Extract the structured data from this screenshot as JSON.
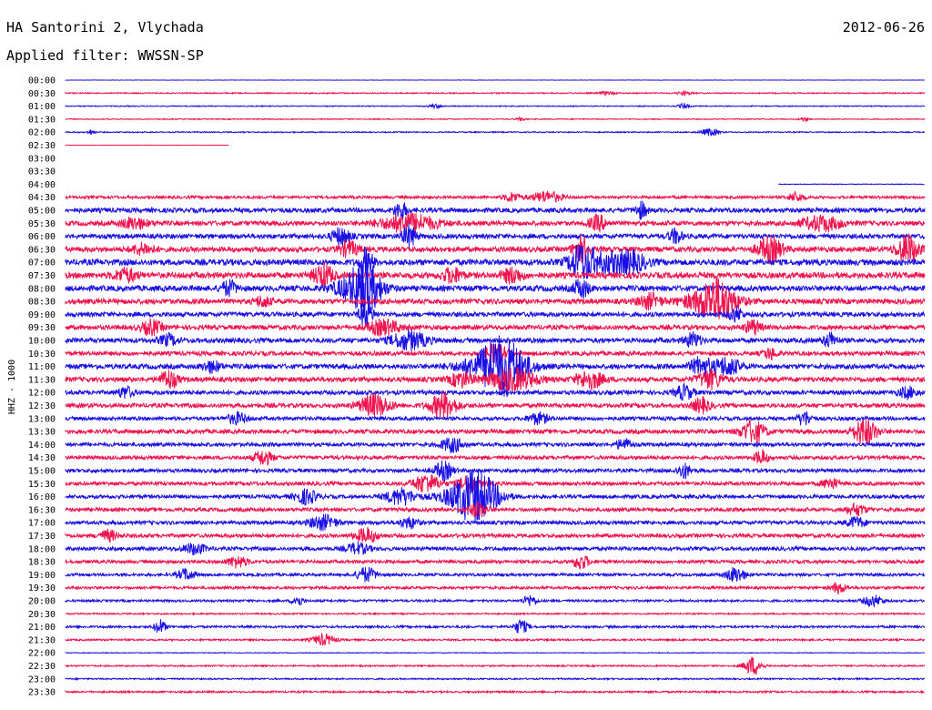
{
  "header": {
    "station": "HA Santorini 2, Vlychada",
    "date": "2012-06-26",
    "filter": "Applied filter: WWSSN-SP"
  },
  "chart_data": {
    "type": "line",
    "title": "HA Santorini 2, Vlychada",
    "ylabel": "HHZ - 1000",
    "xlabel": "",
    "rows": [
      "00:00",
      "00:30",
      "01:00",
      "01:30",
      "02:00",
      "02:30",
      "03:00",
      "03:30",
      "04:00",
      "04:30",
      "05:00",
      "05:30",
      "06:00",
      "06:30",
      "07:00",
      "07:30",
      "08:00",
      "08:30",
      "09:00",
      "09:30",
      "10:00",
      "10:30",
      "11:00",
      "11:30",
      "12:00",
      "12:30",
      "13:00",
      "13:30",
      "14:00",
      "14:30",
      "15:00",
      "15:30",
      "16:00",
      "16:30",
      "17:00",
      "17:30",
      "18:00",
      "18:30",
      "19:00",
      "19:30",
      "20:00",
      "20:30",
      "21:00",
      "21:30",
      "22:00",
      "22:30",
      "23:00",
      "23:30"
    ],
    "row_coverage": [
      [
        0,
        1
      ],
      [
        0,
        1
      ],
      [
        0,
        1
      ],
      [
        0,
        1
      ],
      [
        0,
        1
      ],
      [
        0,
        0.19
      ],
      null,
      null,
      [
        0.83,
        1
      ],
      [
        0,
        1
      ],
      [
        0,
        1
      ],
      [
        0,
        1
      ],
      [
        0,
        1
      ],
      [
        0,
        1
      ],
      [
        0,
        1
      ],
      [
        0,
        1
      ],
      [
        0,
        1
      ],
      [
        0,
        1
      ],
      [
        0,
        1
      ],
      [
        0,
        1
      ],
      [
        0,
        1
      ],
      [
        0,
        1
      ],
      [
        0,
        1
      ],
      [
        0,
        1
      ],
      [
        0,
        1
      ],
      [
        0,
        1
      ],
      [
        0,
        1
      ],
      [
        0,
        1
      ],
      [
        0,
        1
      ],
      [
        0,
        1
      ],
      [
        0,
        1
      ],
      [
        0,
        1
      ],
      [
        0,
        1
      ],
      [
        0,
        1
      ],
      [
        0,
        1
      ],
      [
        0,
        1
      ],
      [
        0,
        1
      ],
      [
        0,
        1
      ],
      [
        0,
        1
      ],
      [
        0,
        1
      ],
      [
        0,
        1
      ],
      [
        0,
        1
      ],
      [
        0,
        1
      ],
      [
        0,
        1
      ],
      [
        0,
        1
      ],
      [
        0,
        1
      ],
      [
        0,
        1
      ],
      [
        0,
        1
      ]
    ],
    "row_noise": [
      0.2,
      0.6,
      0.5,
      0.5,
      0.6,
      0.2,
      0,
      0,
      0.4,
      1.5,
      2.5,
      2.5,
      2.5,
      2.8,
      3.2,
      3.2,
      3,
      2.8,
      2.5,
      2.5,
      2.6,
      2.3,
      2.6,
      2.6,
      2.3,
      2.3,
      2,
      2.3,
      2,
      2,
      2,
      2,
      2,
      2,
      2,
      2,
      2,
      1.8,
      1.5,
      1.5,
      1.2,
      0.8,
      1.2,
      1,
      0.4,
      0.8,
      0.8,
      1
    ],
    "events": [
      [
        1,
        0.63,
        2,
        0.7
      ],
      [
        1,
        0.72,
        2,
        0.7
      ],
      [
        2,
        0.43,
        2,
        0.6
      ],
      [
        2,
        0.72,
        3,
        0.5
      ],
      [
        3,
        0.53,
        2,
        0.4
      ],
      [
        3,
        0.86,
        2,
        0.4
      ],
      [
        4,
        0.03,
        3,
        0.3
      ],
      [
        4,
        0.75,
        4,
        0.8
      ],
      [
        9,
        0.52,
        5,
        0.7
      ],
      [
        9,
        0.56,
        6,
        1.4
      ],
      [
        9,
        0.85,
        5,
        0.7
      ],
      [
        10,
        0.39,
        9,
        0.6
      ],
      [
        10,
        0.67,
        9,
        0.5
      ],
      [
        11,
        0.08,
        6,
        1.2
      ],
      [
        11,
        0.4,
        10,
        2.5
      ],
      [
        11,
        0.62,
        8,
        0.8
      ],
      [
        11,
        0.88,
        8,
        1.8
      ],
      [
        12,
        0.32,
        9,
        0.8
      ],
      [
        12,
        0.4,
        13,
        0.6
      ],
      [
        12,
        0.71,
        8,
        0.6
      ],
      [
        13,
        0.09,
        6,
        1
      ],
      [
        13,
        0.33,
        8,
        0.9
      ],
      [
        13,
        0.6,
        14,
        0.7
      ],
      [
        13,
        0.82,
        14,
        1.1
      ],
      [
        13,
        0.98,
        16,
        1
      ],
      [
        14,
        0.35,
        16,
        0.6
      ],
      [
        14,
        0.6,
        17,
        1.1
      ],
      [
        14,
        0.63,
        10,
        2.2
      ],
      [
        14,
        0.66,
        8,
        1.4
      ],
      [
        15,
        0.07,
        7,
        1
      ],
      [
        15,
        0.3,
        12,
        0.9
      ],
      [
        15,
        0.45,
        8,
        0.9
      ],
      [
        15,
        0.52,
        8,
        0.9
      ],
      [
        16,
        0.19,
        8,
        0.7
      ],
      [
        16,
        0.34,
        14,
        2
      ],
      [
        16,
        0.35,
        18,
        1.3
      ],
      [
        16,
        0.6,
        10,
        0.7
      ],
      [
        17,
        0.23,
        6,
        0.7
      ],
      [
        17,
        0.68,
        8,
        1
      ],
      [
        17,
        0.75,
        12,
        2.3
      ],
      [
        17,
        0.76,
        14,
        1.5
      ],
      [
        18,
        0.35,
        14,
        0.6
      ],
      [
        18,
        0.78,
        8,
        0.6
      ],
      [
        19,
        0.1,
        8,
        0.9
      ],
      [
        19,
        0.37,
        8,
        1.5
      ],
      [
        19,
        0.8,
        8,
        0.7
      ],
      [
        20,
        0.12,
        6,
        0.8
      ],
      [
        20,
        0.4,
        10,
        1.6
      ],
      [
        20,
        0.73,
        8,
        0.7
      ],
      [
        20,
        0.89,
        8,
        0.6
      ],
      [
        21,
        0.5,
        10,
        1
      ],
      [
        21,
        0.82,
        6,
        0.6
      ],
      [
        22,
        0.17,
        6,
        0.8
      ],
      [
        22,
        0.5,
        16,
        2.8
      ],
      [
        22,
        0.51,
        18,
        1.8
      ],
      [
        22,
        0.74,
        10,
        1
      ],
      [
        22,
        0.77,
        10,
        1.2
      ],
      [
        23,
        0.12,
        10,
        0.8
      ],
      [
        23,
        0.46,
        8,
        1
      ],
      [
        23,
        0.52,
        12,
        2.2
      ],
      [
        23,
        0.61,
        10,
        1.2
      ],
      [
        23,
        0.75,
        10,
        1.1
      ],
      [
        24,
        0.07,
        6,
        0.7
      ],
      [
        24,
        0.72,
        8,
        0.8
      ],
      [
        24,
        0.98,
        6,
        0.8
      ],
      [
        25,
        0.36,
        12,
        1.4
      ],
      [
        25,
        0.44,
        14,
        1.2
      ],
      [
        25,
        0.74,
        8,
        0.8
      ],
      [
        26,
        0.2,
        6,
        0.9
      ],
      [
        26,
        0.55,
        6,
        0.9
      ],
      [
        26,
        0.86,
        8,
        0.6
      ],
      [
        27,
        0.8,
        12,
        1.1
      ],
      [
        27,
        0.93,
        14,
        1.1
      ],
      [
        28,
        0.45,
        8,
        1
      ],
      [
        28,
        0.65,
        6,
        0.7
      ],
      [
        29,
        0.23,
        8,
        0.8
      ],
      [
        29,
        0.81,
        8,
        0.6
      ],
      [
        30,
        0.44,
        10,
        0.8
      ],
      [
        30,
        0.72,
        8,
        0.6
      ],
      [
        31,
        0.42,
        10,
        1.2
      ],
      [
        31,
        0.47,
        8,
        1.1
      ],
      [
        31,
        0.89,
        6,
        0.7
      ],
      [
        32,
        0.28,
        8,
        1
      ],
      [
        32,
        0.39,
        9,
        1.3
      ],
      [
        32,
        0.47,
        14,
        2.4
      ],
      [
        32,
        0.48,
        16,
        1.8
      ],
      [
        33,
        0.48,
        8,
        0.8
      ],
      [
        33,
        0.92,
        6,
        0.9
      ],
      [
        34,
        0.3,
        8,
        1.2
      ],
      [
        34,
        0.4,
        6,
        0.8
      ],
      [
        34,
        0.92,
        6,
        0.8
      ],
      [
        35,
        0.35,
        8,
        1
      ],
      [
        35,
        0.05,
        6,
        0.8
      ],
      [
        36,
        0.15,
        6,
        1
      ],
      [
        36,
        0.34,
        6,
        1
      ],
      [
        37,
        0.2,
        6,
        0.9
      ],
      [
        37,
        0.6,
        8,
        0.7
      ],
      [
        38,
        0.14,
        6,
        0.8
      ],
      [
        38,
        0.35,
        8,
        0.9
      ],
      [
        38,
        0.78,
        8,
        0.9
      ],
      [
        39,
        0.9,
        6,
        0.6
      ],
      [
        40,
        0.27,
        6,
        0.5
      ],
      [
        40,
        0.54,
        6,
        0.6
      ],
      [
        40,
        0.94,
        6,
        0.9
      ],
      [
        42,
        0.11,
        8,
        0.5
      ],
      [
        42,
        0.53,
        8,
        0.6
      ],
      [
        43,
        0.3,
        6,
        1
      ],
      [
        45,
        0.8,
        10,
        0.8
      ]
    ]
  }
}
